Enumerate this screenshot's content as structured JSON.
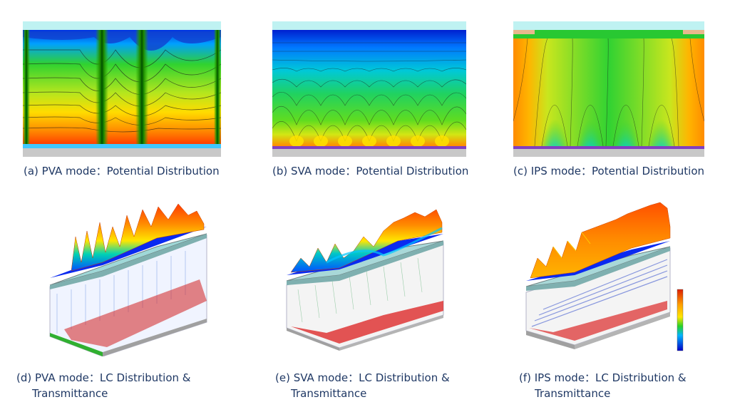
{
  "figure": {
    "panels": [
      {
        "id": "a",
        "caption": "(a) PVA mode：Potential Distribution"
      },
      {
        "id": "b",
        "caption": "(b) SVA mode：Potential Distribution"
      },
      {
        "id": "c",
        "caption": "(c) IPS mode：Potential Distribution"
      },
      {
        "id": "d",
        "caption_line1": "(d) PVA mode：LC Distribution &",
        "caption_line2": "Transmittance"
      },
      {
        "id": "e",
        "caption_line1": "(e) SVA mode：LC Distribution &",
        "caption_line2": "Transmittance"
      },
      {
        "id": "f",
        "caption_line1": "(f) IPS mode：LC Distribution &",
        "caption_line2": "Transmittance"
      }
    ],
    "colormap": [
      "#0000c8",
      "#0050ff",
      "#00b4ff",
      "#00e6b4",
      "#28d228",
      "#aae61e",
      "#ffe600",
      "#ffa000",
      "#ff5a00",
      "#dc1e00"
    ]
  }
}
